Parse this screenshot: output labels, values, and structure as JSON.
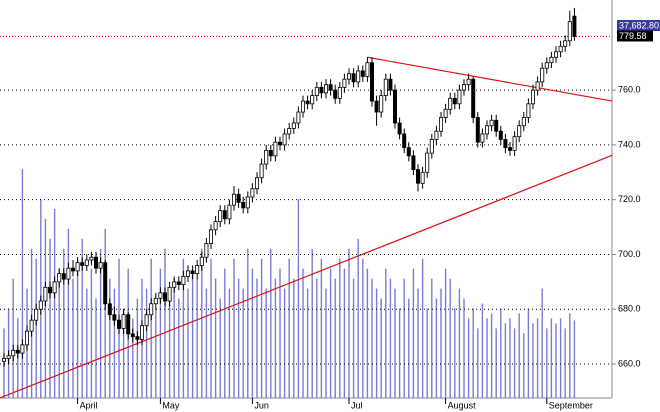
{
  "chart_data": {
    "type": "candlestick",
    "categories": [
      null,
      null,
      null,
      null,
      null,
      null,
      null,
      null,
      null,
      null,
      null,
      null,
      null,
      null,
      null,
      null,
      "April",
      null,
      null,
      null,
      null,
      null,
      null,
      null,
      null,
      null,
      null,
      null,
      null,
      null,
      null,
      null,
      null,
      null,
      "May",
      null,
      null,
      null,
      null,
      null,
      null,
      null,
      null,
      null,
      null,
      null,
      null,
      null,
      null,
      null,
      null,
      null,
      null,
      null,
      "Jun",
      null,
      null,
      null,
      null,
      null,
      null,
      null,
      null,
      null,
      null,
      null,
      null,
      null,
      null,
      null,
      null,
      null,
      null,
      null,
      null,
      "Jul",
      null,
      null,
      null,
      null,
      null,
      null,
      null,
      null,
      null,
      null,
      null,
      null,
      null,
      null,
      null,
      null,
      null,
      null,
      null,
      null,
      "August",
      null,
      null,
      null,
      null,
      null,
      null,
      null,
      null,
      null,
      null,
      null,
      null,
      null,
      null,
      null,
      null,
      null,
      null,
      null,
      null,
      null,
      "September",
      null,
      null,
      null,
      null,
      null,
      null
    ],
    "ohlc": [
      [
        661,
        664,
        659,
        662
      ],
      [
        662,
        665,
        660,
        663
      ],
      [
        663,
        667,
        661,
        665
      ],
      [
        665,
        667,
        662,
        664
      ],
      [
        664,
        669,
        662,
        667
      ],
      [
        667,
        674,
        665,
        672
      ],
      [
        672,
        678,
        670,
        676
      ],
      [
        676,
        682,
        674,
        680
      ],
      [
        680,
        685,
        678,
        683
      ],
      [
        683,
        690,
        681,
        688
      ],
      [
        688,
        690,
        684,
        686
      ],
      [
        686,
        692,
        684,
        690
      ],
      [
        690,
        695,
        688,
        693
      ],
      [
        693,
        695,
        689,
        691
      ],
      [
        691,
        697,
        689,
        695
      ],
      [
        695,
        698,
        692,
        694
      ],
      [
        694,
        699,
        692,
        697
      ],
      [
        697,
        699,
        694,
        696
      ],
      [
        696,
        700,
        694,
        698
      ],
      [
        698,
        701,
        696,
        699
      ],
      [
        699,
        701,
        693,
        695
      ],
      [
        695,
        699,
        693,
        697
      ],
      [
        697,
        698,
        680,
        682
      ],
      [
        682,
        684,
        676,
        678
      ],
      [
        678,
        681,
        674,
        676
      ],
      [
        676,
        678,
        671,
        673
      ],
      [
        673,
        680,
        671,
        678
      ],
      [
        678,
        679,
        669,
        671
      ],
      [
        671,
        673,
        668,
        670
      ],
      [
        670,
        672,
        667,
        669
      ],
      [
        669,
        676,
        667,
        674
      ],
      [
        674,
        680,
        672,
        678
      ],
      [
        678,
        684,
        676,
        682
      ],
      [
        682,
        686,
        680,
        684
      ],
      [
        684,
        688,
        682,
        686
      ],
      [
        686,
        688,
        681,
        683
      ],
      [
        683,
        690,
        681,
        688
      ],
      [
        688,
        692,
        686,
        690
      ],
      [
        690,
        692,
        687,
        689
      ],
      [
        689,
        694,
        687,
        692
      ],
      [
        692,
        696,
        690,
        694
      ],
      [
        694,
        696,
        691,
        693
      ],
      [
        693,
        698,
        691,
        696
      ],
      [
        696,
        701,
        694,
        699
      ],
      [
        699,
        706,
        697,
        704
      ],
      [
        704,
        711,
        702,
        709
      ],
      [
        709,
        714,
        707,
        712
      ],
      [
        712,
        718,
        710,
        716
      ],
      [
        716,
        718,
        711,
        713
      ],
      [
        713,
        720,
        711,
        718
      ],
      [
        718,
        725,
        716,
        722
      ],
      [
        722,
        724,
        717,
        719
      ],
      [
        719,
        721,
        715,
        717
      ],
      [
        717,
        723,
        715,
        721
      ],
      [
        721,
        726,
        719,
        724
      ],
      [
        724,
        730,
        722,
        728
      ],
      [
        728,
        735,
        726,
        733
      ],
      [
        733,
        740,
        731,
        738
      ],
      [
        738,
        740,
        734,
        736
      ],
      [
        736,
        743,
        734,
        741
      ],
      [
        741,
        743,
        738,
        740
      ],
      [
        740,
        746,
        738,
        744
      ],
      [
        744,
        748,
        742,
        746
      ],
      [
        746,
        750,
        744,
        748
      ],
      [
        748,
        754,
        746,
        752
      ],
      [
        752,
        758,
        750,
        756
      ],
      [
        756,
        758,
        753,
        755
      ],
      [
        755,
        760,
        753,
        758
      ],
      [
        758,
        763,
        756,
        761
      ],
      [
        761,
        763,
        757,
        759
      ],
      [
        759,
        764,
        757,
        762
      ],
      [
        762,
        764,
        758,
        760
      ],
      [
        760,
        762,
        755,
        757
      ],
      [
        757,
        763,
        755,
        761
      ],
      [
        761,
        766,
        759,
        764
      ],
      [
        764,
        768,
        762,
        766
      ],
      [
        766,
        768,
        761,
        763
      ],
      [
        763,
        769,
        761,
        767
      ],
      [
        767,
        769,
        763,
        765
      ],
      [
        765,
        772,
        763,
        770
      ],
      [
        770,
        772,
        754,
        756
      ],
      [
        756,
        758,
        747,
        752
      ],
      [
        752,
        760,
        750,
        758
      ],
      [
        758,
        766,
        756,
        764
      ],
      [
        764,
        766,
        758,
        760
      ],
      [
        760,
        762,
        746,
        748
      ],
      [
        748,
        750,
        742,
        744
      ],
      [
        744,
        746,
        737,
        739
      ],
      [
        739,
        741,
        734,
        736
      ],
      [
        736,
        738,
        729,
        731
      ],
      [
        731,
        733,
        723,
        726
      ],
      [
        726,
        732,
        724,
        730
      ],
      [
        730,
        739,
        728,
        737
      ],
      [
        737,
        744,
        735,
        742
      ],
      [
        742,
        747,
        740,
        745
      ],
      [
        745,
        752,
        743,
        750
      ],
      [
        750,
        755,
        748,
        753
      ],
      [
        753,
        759,
        751,
        757
      ],
      [
        757,
        759,
        753,
        755
      ],
      [
        755,
        762,
        753,
        760
      ],
      [
        760,
        764,
        758,
        762
      ],
      [
        762,
        766,
        760,
        764
      ],
      [
        764,
        765,
        748,
        750
      ],
      [
        750,
        752,
        739,
        741
      ],
      [
        741,
        746,
        739,
        744
      ],
      [
        744,
        749,
        742,
        747
      ],
      [
        747,
        751,
        745,
        749
      ],
      [
        749,
        751,
        743,
        745
      ],
      [
        745,
        747,
        740,
        742
      ],
      [
        742,
        744,
        737,
        739
      ],
      [
        739,
        741,
        736,
        738
      ],
      [
        738,
        745,
        736,
        743
      ],
      [
        743,
        749,
        741,
        747
      ],
      [
        747,
        752,
        745,
        750
      ],
      [
        750,
        757,
        748,
        755
      ],
      [
        755,
        762,
        753,
        760
      ],
      [
        760,
        765,
        758,
        763
      ],
      [
        763,
        770,
        761,
        768
      ],
      [
        768,
        772,
        766,
        770
      ],
      [
        770,
        774,
        768,
        772
      ],
      [
        772,
        776,
        770,
        774
      ],
      [
        774,
        778,
        772,
        776
      ],
      [
        776,
        780,
        774,
        778
      ],
      [
        778,
        789,
        776,
        785
      ],
      [
        787,
        790,
        778,
        779.58
      ]
    ],
    "volume": [
      70,
      90,
      120,
      80,
      230,
      110,
      150,
      140,
      200,
      180,
      160,
      190,
      130,
      150,
      170,
      120,
      140,
      160,
      110,
      130,
      100,
      150,
      170,
      120,
      110,
      140,
      90,
      130,
      80,
      100,
      120,
      110,
      140,
      90,
      130,
      150,
      110,
      120,
      100,
      140,
      110,
      130,
      120,
      150,
      110,
      140,
      120,
      100,
      130,
      110,
      140,
      120,
      110,
      150,
      130,
      120,
      140,
      110,
      150,
      120,
      130,
      110,
      140,
      120,
      200,
      130,
      110,
      150,
      120,
      140,
      110,
      130,
      120,
      140,
      130,
      150,
      120,
      160,
      140,
      130,
      120,
      110,
      100,
      130,
      120,
      110,
      90,
      120,
      100,
      130,
      110,
      140,
      90,
      120,
      100,
      110,
      130,
      120,
      90,
      110,
      100,
      80,
      90,
      70,
      95,
      80,
      85,
      70,
      90,
      75,
      80,
      70,
      85,
      65,
      90,
      75,
      80,
      110,
      70,
      80,
      75,
      80,
      70,
      85,
      78
    ],
    "volume_color": "#7b7bd0",
    "ylim": [
      647.6,
      792.9
    ],
    "yticks": [
      {
        "value": 660,
        "label": "660.0"
      },
      {
        "value": 680,
        "label": "680.0"
      },
      {
        "value": 700,
        "label": "700.0"
      },
      {
        "value": 720,
        "label": "720.0"
      },
      {
        "value": 740,
        "label": "740.0"
      },
      {
        "value": 760,
        "label": "760.0"
      }
    ],
    "y2lim": [
      0,
      400
    ],
    "grid": true,
    "trendlines": [
      {
        "color": "#e01010",
        "points": [
          [
            -0.9,
            647.6
          ],
          [
            132.2,
            736.2
          ]
        ]
      },
      {
        "color": "#e01010",
        "points": [
          [
            79,
            772
          ],
          [
            132.2,
            756
          ]
        ]
      }
    ],
    "last_volume_label": "37,682.80"
  }
}
